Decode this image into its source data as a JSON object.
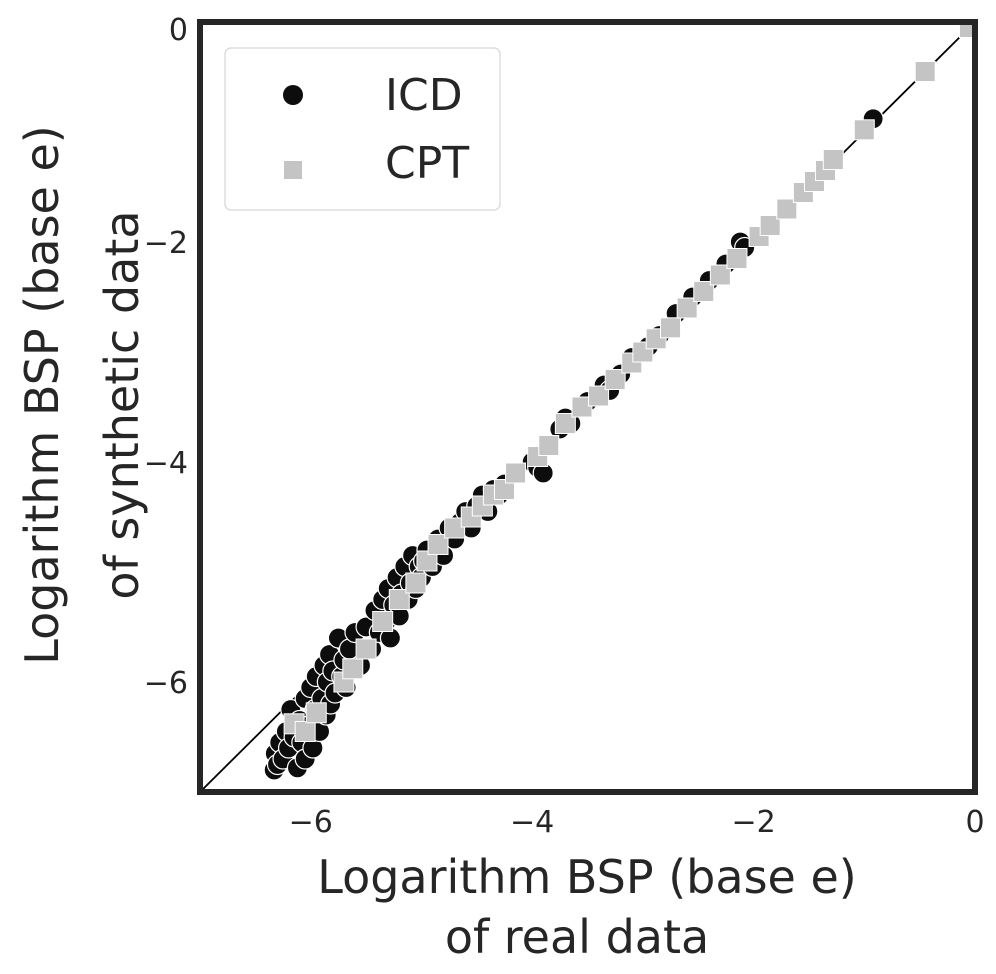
{
  "chart_data": {
    "type": "scatter",
    "title": "",
    "xlabel_lines": [
      "Logarithm BSP (base e)",
      "of real data"
    ],
    "ylabel_lines": [
      "Logarithm BSP (base e)",
      "of synthetic data"
    ],
    "xlim": [
      -7,
      0
    ],
    "ylim": [
      -7,
      0
    ],
    "xticks": [
      -6,
      -4,
      -2,
      0
    ],
    "yticks": [
      -6,
      -4,
      -2,
      0
    ],
    "tick_labels": [
      "−6",
      "−4",
      "−2",
      "0"
    ],
    "grid": false,
    "reference_line": {
      "label": "y = x",
      "color": "#000000"
    },
    "legend": {
      "position": "top-left",
      "entries": [
        "ICD",
        "CPT"
      ]
    },
    "series": [
      {
        "name": "ICD",
        "marker": "circle",
        "color": "#0d0d0d",
        "points": [
          [
            -6.33,
            -6.8
          ],
          [
            -6.32,
            -6.65
          ],
          [
            -6.3,
            -6.75
          ],
          [
            -6.28,
            -6.55
          ],
          [
            -6.25,
            -6.7
          ],
          [
            -6.22,
            -6.45
          ],
          [
            -6.2,
            -6.6
          ],
          [
            -6.18,
            -6.25
          ],
          [
            -6.15,
            -6.5
          ],
          [
            -6.12,
            -6.78
          ],
          [
            -6.1,
            -6.35
          ],
          [
            -6.08,
            -6.55
          ],
          [
            -6.05,
            -6.15
          ],
          [
            -6.05,
            -6.7
          ],
          [
            -6.02,
            -6.4
          ],
          [
            -6.0,
            -6.05
          ],
          [
            -5.98,
            -6.6
          ],
          [
            -5.96,
            -6.25
          ],
          [
            -5.95,
            -5.95
          ],
          [
            -5.92,
            -6.45
          ],
          [
            -5.9,
            -6.15
          ],
          [
            -5.88,
            -5.85
          ],
          [
            -5.86,
            -6.3
          ],
          [
            -5.85,
            -6.0
          ],
          [
            -5.83,
            -5.75
          ],
          [
            -5.82,
            -6.2
          ],
          [
            -5.8,
            -5.9
          ],
          [
            -5.78,
            -6.1
          ],
          [
            -5.75,
            -5.6
          ],
          [
            -5.72,
            -5.95
          ],
          [
            -5.7,
            -5.8
          ],
          [
            -5.68,
            -6.05
          ],
          [
            -5.65,
            -5.7
          ],
          [
            -5.6,
            -5.55
          ],
          [
            -5.55,
            -5.85
          ],
          [
            -5.5,
            -5.5
          ],
          [
            -5.45,
            -5.7
          ],
          [
            -5.42,
            -5.35
          ],
          [
            -5.38,
            -5.55
          ],
          [
            -5.35,
            -5.25
          ],
          [
            -5.32,
            -5.45
          ],
          [
            -5.3,
            -5.15
          ],
          [
            -5.28,
            -5.6
          ],
          [
            -5.25,
            -5.3
          ],
          [
            -5.22,
            -5.05
          ],
          [
            -5.2,
            -5.4
          ],
          [
            -5.18,
            -5.2
          ],
          [
            -5.15,
            -4.95
          ],
          [
            -5.12,
            -5.25
          ],
          [
            -5.1,
            -5.1
          ],
          [
            -5.08,
            -4.85
          ],
          [
            -5.05,
            -5.15
          ],
          [
            -5.02,
            -4.95
          ],
          [
            -5.0,
            -5.05
          ],
          [
            -4.98,
            -4.9
          ],
          [
            -4.95,
            -4.8
          ],
          [
            -4.9,
            -4.95
          ],
          [
            -4.85,
            -4.7
          ],
          [
            -4.8,
            -4.85
          ],
          [
            -4.75,
            -4.6
          ],
          [
            -4.7,
            -4.7
          ],
          [
            -4.65,
            -4.55
          ],
          [
            -4.6,
            -4.45
          ],
          [
            -4.55,
            -4.6
          ],
          [
            -4.5,
            -4.4
          ],
          [
            -4.45,
            -4.3
          ],
          [
            -4.4,
            -4.45
          ],
          [
            -4.35,
            -4.25
          ],
          [
            -4.3,
            -4.3
          ],
          [
            -4.25,
            -4.2
          ],
          [
            -4.0,
            -4.0
          ],
          [
            -3.95,
            -4.05
          ],
          [
            -3.9,
            -4.1
          ],
          [
            -3.75,
            -3.7
          ],
          [
            -3.7,
            -3.6
          ],
          [
            -3.65,
            -3.65
          ],
          [
            -3.5,
            -3.45
          ],
          [
            -3.35,
            -3.3
          ],
          [
            -3.3,
            -3.35
          ],
          [
            -3.2,
            -3.2
          ],
          [
            -3.1,
            -3.05
          ],
          [
            -2.95,
            -2.95
          ],
          [
            -2.85,
            -2.85
          ],
          [
            -2.7,
            -2.65
          ],
          [
            -2.55,
            -2.5
          ],
          [
            -2.4,
            -2.35
          ],
          [
            -2.25,
            -2.2
          ],
          [
            -2.12,
            -2.0
          ],
          [
            -2.08,
            -2.05
          ],
          [
            -0.92,
            -0.88
          ]
        ]
      },
      {
        "name": "CPT",
        "marker": "square",
        "color": "#c4c4c4",
        "points": [
          [
            -6.15,
            -6.38
          ],
          [
            -6.05,
            -6.45
          ],
          [
            -5.95,
            -6.28
          ],
          [
            -5.7,
            -6.0
          ],
          [
            -5.62,
            -5.88
          ],
          [
            -5.5,
            -5.7
          ],
          [
            -5.35,
            -5.45
          ],
          [
            -5.2,
            -5.25
          ],
          [
            -5.05,
            -5.1
          ],
          [
            -4.95,
            -4.9
          ],
          [
            -4.85,
            -4.75
          ],
          [
            -4.7,
            -4.6
          ],
          [
            -4.55,
            -4.5
          ],
          [
            -4.45,
            -4.4
          ],
          [
            -4.35,
            -4.3
          ],
          [
            -4.25,
            -4.25
          ],
          [
            -4.15,
            -4.1
          ],
          [
            -3.95,
            -3.95
          ],
          [
            -3.85,
            -3.85
          ],
          [
            -3.7,
            -3.65
          ],
          [
            -3.55,
            -3.5
          ],
          [
            -3.4,
            -3.4
          ],
          [
            -3.25,
            -3.25
          ],
          [
            -3.1,
            -3.1
          ],
          [
            -3.0,
            -3.0
          ],
          [
            -2.88,
            -2.88
          ],
          [
            -2.75,
            -2.78
          ],
          [
            -2.6,
            -2.6
          ],
          [
            -2.45,
            -2.45
          ],
          [
            -2.3,
            -2.3
          ],
          [
            -2.15,
            -2.15
          ],
          [
            -1.95,
            -1.95
          ],
          [
            -1.85,
            -1.85
          ],
          [
            -1.7,
            -1.7
          ],
          [
            -1.55,
            -1.55
          ],
          [
            -1.45,
            -1.45
          ],
          [
            -1.35,
            -1.35
          ],
          [
            -1.28,
            -1.25
          ],
          [
            -1.0,
            -0.98
          ],
          [
            -0.45,
            -0.45
          ],
          [
            -0.05,
            -0.05
          ]
        ]
      }
    ]
  }
}
